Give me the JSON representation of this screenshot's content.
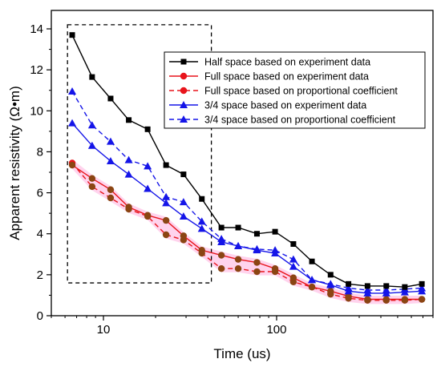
{
  "chart_data": {
    "type": "line",
    "xlabel": "Time (us)",
    "ylabel": "Apparent resistivity (Ω•m)",
    "x_scale": "log",
    "xlim": [
      5,
      800
    ],
    "ylim": [
      0,
      14.9
    ],
    "y_ticks": [
      0,
      2,
      4,
      6,
      8,
      10,
      12,
      14
    ],
    "x_ticks": [
      10,
      100
    ],
    "x_tick_labels": [
      "10",
      "100"
    ],
    "legend_position": "upper-right",
    "highlight_box": {
      "x": [
        6.2,
        42
      ],
      "y": [
        1.6,
        14.2
      ]
    },
    "colors": {
      "half": "#000000",
      "full": "#e8141b",
      "full_prop": "#e8141b",
      "three_quarter": "#1515e8",
      "three_quarter_prop": "#1515e8",
      "full_exp_points": "#8b4513",
      "band": "#ff80cc"
    },
    "series": [
      {
        "name": "Half space based on experiment data",
        "key": "half",
        "marker": "square",
        "dash": false,
        "x": [
          6.6,
          8.6,
          11,
          14,
          18,
          23,
          29,
          37,
          48,
          60,
          77,
          98,
          125,
          160,
          205,
          260,
          335,
          430,
          550,
          690
        ],
        "y": [
          13.7,
          11.65,
          10.6,
          9.55,
          9.1,
          7.35,
          6.9,
          5.7,
          4.3,
          4.3,
          4.0,
          4.1,
          3.5,
          2.65,
          2.0,
          1.55,
          1.45,
          1.45,
          1.4,
          1.55
        ]
      },
      {
        "name": "Full space based on experiment data",
        "key": "full",
        "marker": "circle",
        "dash": false,
        "x": [
          6.6,
          8.6,
          11,
          14,
          18,
          23,
          29,
          37,
          48,
          60,
          77,
          98,
          125,
          160,
          205,
          260,
          335,
          430,
          550,
          690
        ],
        "y": [
          7.35,
          6.7,
          6.15,
          5.3,
          4.9,
          4.65,
          3.9,
          3.2,
          2.95,
          2.75,
          2.6,
          2.3,
          1.85,
          1.4,
          1.2,
          0.95,
          0.8,
          0.8,
          0.8,
          0.8
        ]
      },
      {
        "name": "Full space based on proportional coefficient",
        "key": "full_prop",
        "marker": "circle",
        "dash": true,
        "x": [
          6.6,
          8.6,
          11,
          14,
          18,
          23,
          29,
          37,
          48,
          60,
          77,
          98,
          125,
          160,
          205,
          260,
          335,
          430,
          550,
          690
        ],
        "y": [
          7.45,
          6.3,
          5.75,
          5.2,
          4.85,
          3.95,
          3.7,
          3.05,
          2.3,
          2.3,
          2.15,
          2.15,
          1.65,
          1.4,
          1.05,
          0.85,
          0.75,
          0.75,
          0.75,
          0.8
        ]
      },
      {
        "name": "3/4 space based on experiment data",
        "key": "three_quarter",
        "marker": "triangle",
        "dash": false,
        "x": [
          6.6,
          8.6,
          11,
          14,
          18,
          23,
          29,
          37,
          48,
          60,
          77,
          98,
          125,
          160,
          205,
          260,
          335,
          430,
          550,
          690
        ],
        "y": [
          9.4,
          8.3,
          7.55,
          6.9,
          6.2,
          5.5,
          4.85,
          4.25,
          3.6,
          3.4,
          3.2,
          3.05,
          2.4,
          1.75,
          1.5,
          1.2,
          1.1,
          1.1,
          1.15,
          1.2
        ]
      },
      {
        "name": "3/4 space based on  proportional coefficient",
        "key": "three_quarter_prop",
        "marker": "triangle",
        "dash": true,
        "x": [
          6.6,
          8.6,
          11,
          14,
          18,
          23,
          29,
          37,
          48,
          60,
          77,
          98,
          125,
          160,
          205,
          260,
          335,
          430,
          550,
          690
        ],
        "y": [
          10.95,
          9.3,
          8.5,
          7.6,
          7.3,
          5.8,
          5.55,
          4.6,
          3.75,
          3.4,
          3.25,
          3.2,
          2.75,
          1.75,
          1.55,
          1.35,
          1.25,
          1.25,
          1.3,
          1.35
        ]
      }
    ]
  }
}
